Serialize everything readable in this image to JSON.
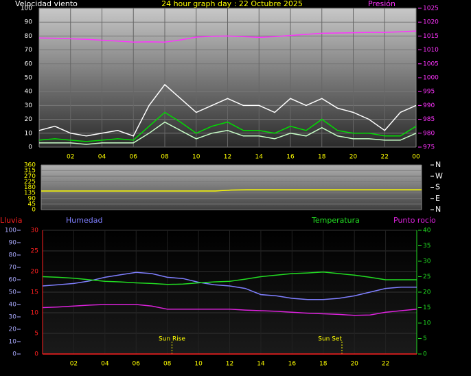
{
  "chart_data": [
    {
      "type": "line",
      "title": "24 hour graph day : 22 Octubre 2025",
      "ylabel": "Velocidad viento",
      "y2label": "Presión",
      "x": [
        0,
        1,
        2,
        3,
        4,
        5,
        6,
        7,
        8,
        9,
        10,
        11,
        12,
        13,
        14,
        15,
        16,
        17,
        18,
        19,
        20,
        21,
        22,
        23,
        24
      ],
      "xlim": [
        0,
        24
      ],
      "xticks": [
        {
          "value": 2,
          "label": "02"
        },
        {
          "value": 4,
          "label": "04"
        },
        {
          "value": 6,
          "label": "06"
        },
        {
          "value": 8,
          "label": "08"
        },
        10,
        12,
        14,
        16,
        18,
        20,
        22,
        {
          "value": 24,
          "label": "00"
        }
      ],
      "ylim": [
        0,
        100
      ],
      "yticks": [
        0,
        10,
        20,
        30,
        40,
        50,
        60,
        70,
        80,
        90,
        100
      ],
      "y2lim": [
        975,
        1025
      ],
      "y2ticks": [
        975,
        980,
        985,
        990,
        995,
        1000,
        1005,
        1010,
        1015,
        1020,
        1025
      ],
      "grid": true,
      "series": [
        {
          "color": "#ffffff",
          "axis": "y",
          "values": [
            12,
            15,
            10,
            8,
            10,
            12,
            8,
            30,
            45,
            35,
            25,
            30,
            35,
            30,
            30,
            25,
            35,
            30,
            35,
            28,
            25,
            20,
            12,
            25,
            30
          ]
        },
        {
          "color": "#c8ffc8",
          "axis": "y",
          "values": [
            3,
            3,
            3,
            2,
            3,
            3,
            3,
            10,
            18,
            12,
            6,
            10,
            12,
            8,
            8,
            6,
            10,
            8,
            14,
            8,
            6,
            6,
            5,
            5,
            10
          ]
        },
        {
          "color": "#00dd00",
          "axis": "y",
          "values": [
            5,
            6,
            5,
            4,
            5,
            6,
            5,
            15,
            25,
            18,
            10,
            15,
            18,
            12,
            12,
            10,
            15,
            12,
            20,
            12,
            10,
            10,
            8,
            8,
            15
          ]
        },
        {
          "color": "#ff33ff",
          "axis": "y2",
          "values": [
            1014.3,
            1014.2,
            1014,
            1013.8,
            1013.5,
            1013.2,
            1012.8,
            1012.9,
            1012.8,
            1013.6,
            1014.6,
            1014.9,
            1015,
            1014.8,
            1014.5,
            1014.8,
            1015.2,
            1015.6,
            1016,
            1016.1,
            1016.2,
            1016.3,
            1016.3,
            1016.5,
            1016.8
          ]
        }
      ]
    },
    {
      "type": "line",
      "x": [
        0,
        1,
        2,
        3,
        4,
        5,
        6,
        7,
        8,
        9,
        10,
        11,
        12,
        13,
        14,
        15,
        16,
        17,
        18,
        19,
        20,
        21,
        22,
        23,
        24
      ],
      "xlim": [
        0,
        24
      ],
      "ylim": [
        0,
        360
      ],
      "yticks": [
        0,
        45,
        90,
        135,
        180,
        225,
        270,
        315,
        360
      ],
      "y2lim": [
        0,
        360
      ],
      "y2ticks": [
        {
          "value": 360,
          "label": "N"
        },
        {
          "value": 270,
          "label": "W"
        },
        {
          "value": 180,
          "label": "S"
        },
        {
          "value": 90,
          "label": "E"
        },
        {
          "value": 0,
          "label": "N"
        }
      ],
      "grid": true,
      "series": [
        {
          "color": "#ffff00",
          "axis": "y",
          "values": [
            150,
            150,
            150,
            150,
            150,
            150,
            150,
            150,
            150,
            150,
            150,
            150,
            158,
            160,
            160,
            160,
            160,
            160,
            160,
            160,
            160,
            160,
            160,
            160,
            160
          ]
        }
      ]
    },
    {
      "type": "line",
      "x": [
        0,
        1,
        2,
        3,
        4,
        5,
        6,
        7,
        8,
        9,
        10,
        11,
        12,
        13,
        14,
        15,
        16,
        17,
        18,
        19,
        20,
        21,
        22,
        23,
        24
      ],
      "xlim": [
        0,
        24
      ],
      "xticks": [
        {
          "value": 2,
          "label": "02"
        },
        {
          "value": 4,
          "label": "04"
        },
        {
          "value": 6,
          "label": "06"
        },
        {
          "value": 8,
          "label": "08"
        },
        10,
        12,
        14,
        16,
        18,
        20,
        22
      ],
      "ylim": [
        0,
        100
      ],
      "yticks": [
        0,
        10,
        20,
        30,
        40,
        50,
        60,
        70,
        80,
        90,
        100
      ],
      "rain_ylim": [
        0,
        30
      ],
      "rain_yticks": [
        0,
        5,
        10,
        15,
        20,
        25,
        30
      ],
      "y2lim": [
        0,
        40
      ],
      "y2ticks": [
        0,
        5,
        10,
        15,
        20,
        25,
        30,
        35,
        40
      ],
      "grid": true,
      "annotations": [
        {
          "text": "Sun Rise",
          "x": 8.3
        },
        {
          "text": "Sun Set",
          "x": 19.2
        }
      ],
      "series": [
        {
          "name": "Lluvia",
          "color": "#ff2020",
          "axis": "rain",
          "values": [
            0,
            0,
            0,
            0,
            0,
            0,
            0,
            0,
            0,
            0,
            0,
            0,
            0,
            0,
            0,
            0,
            0,
            0,
            0,
            0,
            0,
            0,
            0,
            0,
            0
          ]
        },
        {
          "name": "Humedad",
          "color": "#7f7fff",
          "axis": "y",
          "values": [
            55,
            56,
            57,
            59,
            62,
            64,
            66,
            65,
            62,
            61,
            58,
            56,
            55,
            53,
            48,
            47,
            45,
            44,
            44,
            45,
            47,
            50,
            53,
            54,
            54
          ]
        },
        {
          "name": "Temperatura",
          "color": "#22dd22",
          "axis": "y2",
          "values": [
            25,
            24.8,
            24.5,
            24,
            23.5,
            23.3,
            23,
            22.8,
            22.5,
            22.6,
            23,
            23.3,
            23.5,
            24.2,
            25,
            25.5,
            26,
            26.2,
            26.5,
            26,
            25.5,
            24.8,
            24,
            24,
            24
          ]
        },
        {
          "name": "Punto rocío",
          "color": "#dd22dd",
          "axis": "y2",
          "values": [
            15,
            15.2,
            15.5,
            15.8,
            16,
            16,
            16,
            15.5,
            14.5,
            14.5,
            14.5,
            14.5,
            14.5,
            14.2,
            14,
            13.8,
            13.5,
            13.2,
            13,
            12.8,
            12.5,
            12.6,
            13.5,
            14,
            14.5
          ]
        }
      ]
    }
  ]
}
